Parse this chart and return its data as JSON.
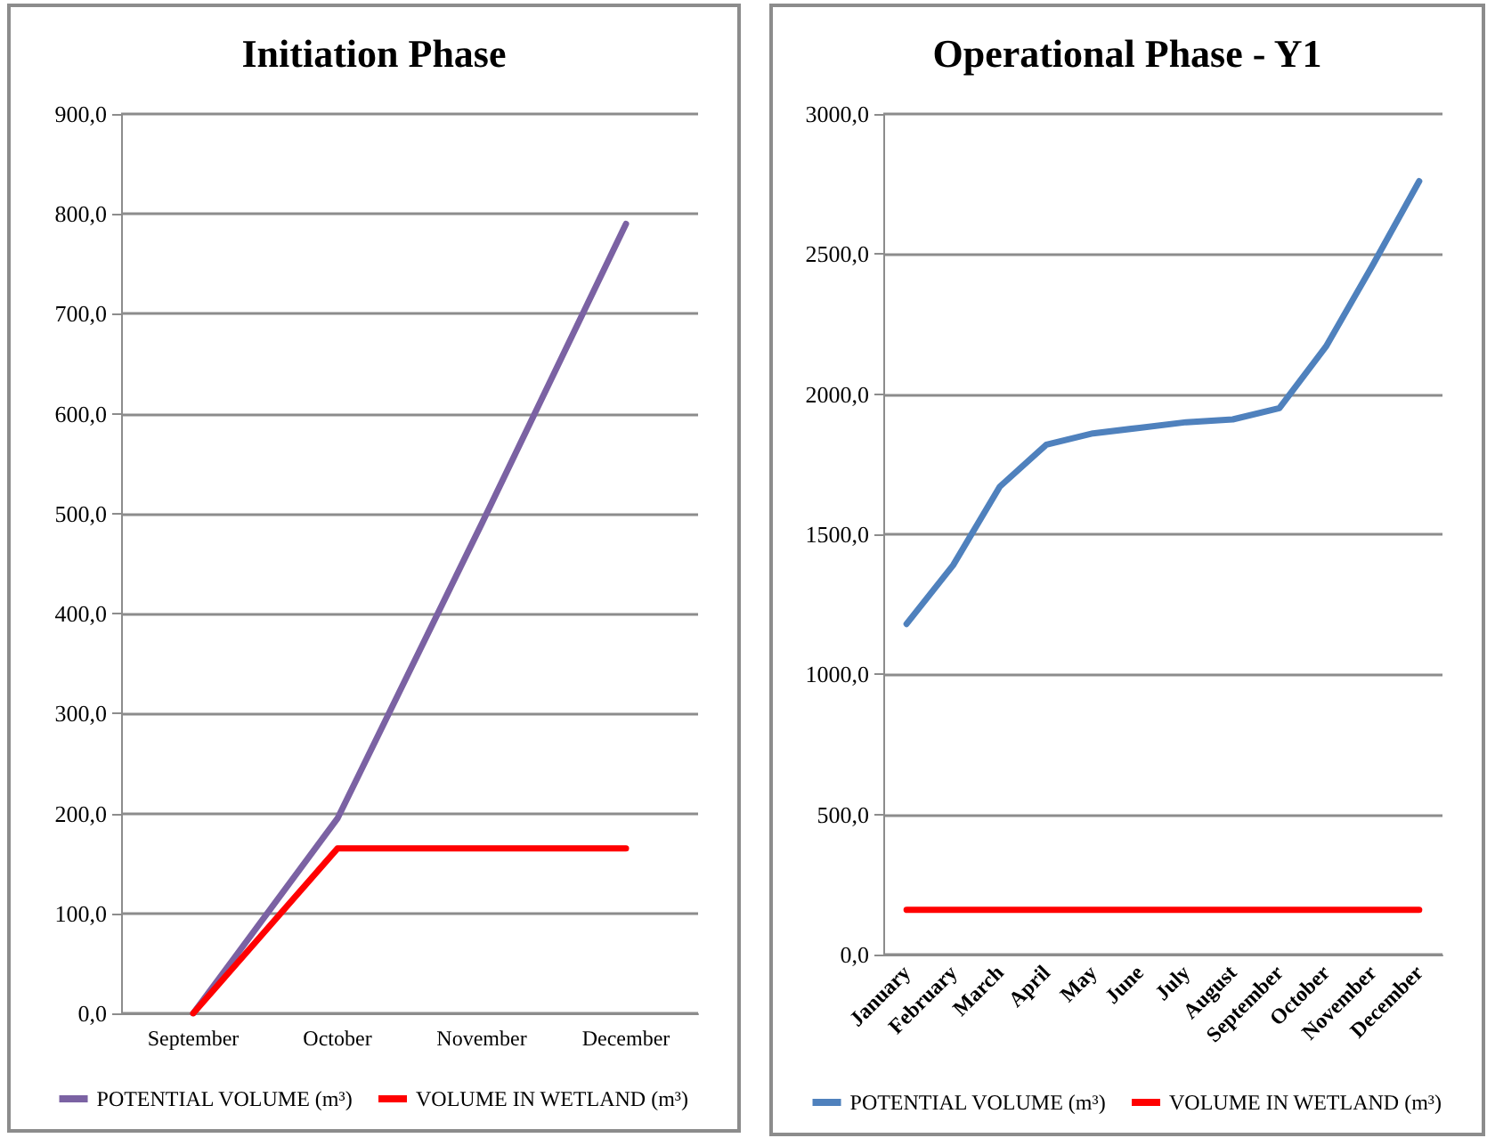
{
  "chart_data": [
    {
      "type": "line",
      "title": "Initiation Phase",
      "categories": [
        "September",
        "October",
        "November",
        "December"
      ],
      "series": [
        {
          "name": "POTENTIAL VOLUME (m³)",
          "color": "#7b62a3",
          "values": [
            0,
            195,
            490,
            790
          ]
        },
        {
          "name": "VOLUME IN WETLAND (m³)",
          "color": "#ff0000",
          "values": [
            0,
            165,
            165,
            165
          ]
        }
      ],
      "ylim": [
        0,
        900
      ],
      "yticks": [
        {
          "value": 0,
          "label": "0,0"
        },
        {
          "value": 100,
          "label": "100,0"
        },
        {
          "value": 200,
          "label": "200,0"
        },
        {
          "value": 300,
          "label": "300,0"
        },
        {
          "value": 400,
          "label": "400,0"
        },
        {
          "value": 500,
          "label": "500,0"
        },
        {
          "value": 600,
          "label": "600,0"
        },
        {
          "value": 700,
          "label": "700,0"
        },
        {
          "value": 800,
          "label": "800,0"
        },
        {
          "value": 900,
          "label": "900,0"
        }
      ],
      "grid": "y",
      "legend": "bottom",
      "marker": "none",
      "line_style": "solid"
    },
    {
      "type": "line",
      "title": "Operational Phase - Y1",
      "categories": [
        "January",
        "February",
        "March",
        "April",
        "May",
        "June",
        "July",
        "August",
        "September",
        "October",
        "November",
        "December"
      ],
      "series": [
        {
          "name": "POTENTIAL VOLUME (m³)",
          "color": "#4f81bd",
          "values": [
            1180,
            1390,
            1670,
            1820,
            1860,
            1880,
            1900,
            1910,
            1950,
            2170,
            2460,
            2760
          ]
        },
        {
          "name": "VOLUME IN WETLAND (m³)",
          "color": "#ff0000",
          "values": [
            160,
            160,
            160,
            160,
            160,
            160,
            160,
            160,
            160,
            160,
            160,
            160
          ]
        }
      ],
      "ylim": [
        0,
        3000
      ],
      "yticks": [
        {
          "value": 0,
          "label": "0,0"
        },
        {
          "value": 500,
          "label": "500,0"
        },
        {
          "value": 1000,
          "label": "1000,0"
        },
        {
          "value": 1500,
          "label": "1500,0"
        },
        {
          "value": 2000,
          "label": "2000,0"
        },
        {
          "value": 2500,
          "label": "2500,0"
        },
        {
          "value": 3000,
          "label": "3000,0"
        }
      ],
      "grid": "y",
      "legend": "bottom",
      "marker": "none",
      "line_style": "solid"
    }
  ]
}
